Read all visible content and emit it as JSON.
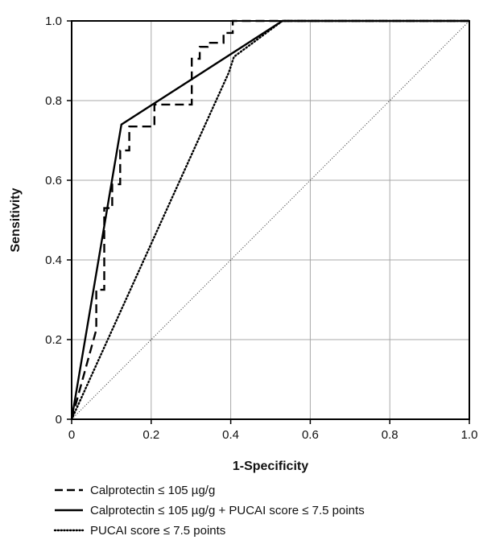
{
  "chart_data": {
    "type": "line",
    "title": "",
    "xlabel": "1-Specificity",
    "ylabel": "Sensitivity",
    "xlim": [
      0,
      1.0
    ],
    "ylim": [
      0,
      1.0
    ],
    "grid": true,
    "legend_position": "bottom-left",
    "x_ticks": [
      0,
      0.2,
      0.4,
      0.6,
      0.8,
      1.0
    ],
    "x_tick_labels": [
      "0",
      "0.2",
      "0.4",
      "0.6",
      "0.8",
      "1.0"
    ],
    "y_ticks": [
      0,
      0.2,
      0.4,
      0.6,
      0.8,
      1.0
    ],
    "y_tick_labels": [
      "0",
      "0.2",
      "0.4",
      "0.6",
      "0.8",
      "1.0"
    ],
    "series": [
      {
        "name": "Calprotectin ≤ 105 µg/g",
        "style": "dashed",
        "color": "#000000",
        "x": [
          0,
          0.062,
          0.062,
          0.082,
          0.082,
          0.102,
          0.102,
          0.122,
          0.122,
          0.145,
          0.145,
          0.208,
          0.208,
          0.302,
          0.302,
          0.322,
          0.322,
          0.342,
          0.342,
          0.382,
          0.382,
          0.405,
          0.405,
          1.0
        ],
        "y": [
          0,
          0.225,
          0.325,
          0.325,
          0.53,
          0.53,
          0.59,
          0.59,
          0.675,
          0.675,
          0.735,
          0.735,
          0.79,
          0.79,
          0.905,
          0.905,
          0.935,
          0.935,
          0.945,
          0.945,
          0.97,
          0.97,
          1.0,
          1.0
        ]
      },
      {
        "name": "Calprotectin ≤ 105 µg/g + PUCAI score ≤ 7.5 points",
        "style": "solid",
        "color": "#000000",
        "x": [
          0,
          0.125,
          0.53,
          1.0
        ],
        "y": [
          0,
          0.74,
          1.0,
          1.0
        ]
      },
      {
        "name": "PUCAI score ≤ 7.5 points",
        "style": "dotted",
        "color": "#000000",
        "x": [
          0,
          0.395,
          0.408,
          0.53,
          1.0
        ],
        "y": [
          0,
          0.87,
          0.91,
          1.0,
          1.0
        ]
      }
    ],
    "reference_line": {
      "x": [
        0,
        1.0
      ],
      "y": [
        0,
        1.0
      ],
      "style": "dotted-thin"
    }
  }
}
